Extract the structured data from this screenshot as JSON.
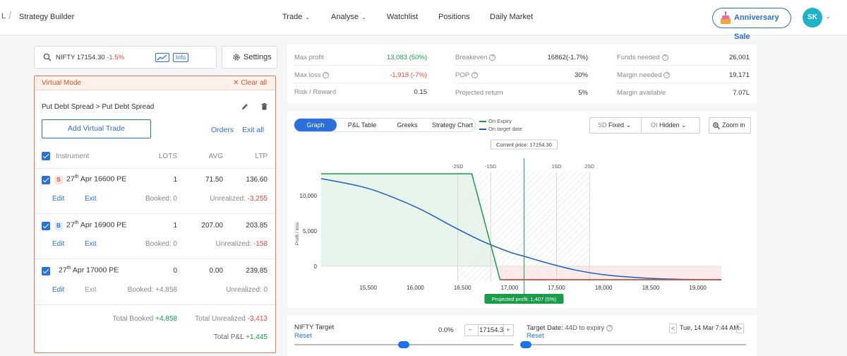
{
  "topbar": {
    "crumb_prefix": "L",
    "page": "Strategy Builder",
    "nav": [
      {
        "label": "Trade",
        "caret": "⌄"
      },
      {
        "label": "Analyse",
        "caret": "⌄"
      },
      {
        "label": "Watchlist"
      },
      {
        "label": "Positions"
      },
      {
        "label": "Daily Market"
      }
    ],
    "anniversary": "Anniversary Sale",
    "avatar": "SK",
    "brand_color": "#2a6fdb",
    "avatar_color": "#1fb3c7"
  },
  "search": {
    "symbol": "NIFTY 17154.30",
    "change": "-1.5%",
    "info": "Info"
  },
  "settings": {
    "label": "Settings"
  },
  "virtual": {
    "mode_label": "Virtual Mode",
    "clear_all": "Clear all",
    "strategy_name": "Put Debt Spread > Put Debt Spread",
    "add_button": "Add Virtual Trade",
    "orders": "Orders",
    "exit_all": "Exit all",
    "headers": {
      "instrument": "Instrument",
      "lots": "LOTS",
      "avg": "AVG",
      "ltp": "LTP"
    },
    "rows": [
      {
        "side": "S",
        "day": "27",
        "sup": "th",
        "rest": " Apr 16600 PE",
        "lots": "1",
        "avg": "71.50",
        "ltp": "136.60",
        "edit": "Edit",
        "exit": "Exit",
        "booked": "Booked: 0",
        "unreal_label": "Unrealized: ",
        "unreal": "-3,255"
      },
      {
        "side": "B",
        "day": "27",
        "sup": "th",
        "rest": " Apr 16900 PE",
        "lots": "1",
        "avg": "207.00",
        "ltp": "203.85",
        "edit": "Edit",
        "exit": "Exit",
        "booked": "Booked: 0",
        "unreal_label": "Unrealized: ",
        "unreal": "-158"
      },
      {
        "side": "",
        "day": "27",
        "sup": "th",
        "rest": " Apr 17000 PE",
        "lots": "0",
        "avg": "0.00",
        "ltp": "239.85",
        "edit": "Edit",
        "exit": "Exit",
        "booked": "Booked: +4,858",
        "unreal_label": "Unrealized: ",
        "unreal": "0"
      }
    ],
    "total_booked_label": "Total Booked ",
    "total_booked": "+4,858",
    "total_unreal_label": "Total Unrealized ",
    "total_unreal": "-3,413",
    "total_pnl_label": "Total P&L ",
    "total_pnl": "+1,445"
  },
  "metrics": {
    "max_profit": {
      "label": "Max profit",
      "value": "13,083 (50%)"
    },
    "max_loss": {
      "label": "Max loss",
      "value": "-1,918 (-7%)"
    },
    "risk_reward": {
      "label": "Risk / Reward",
      "value": "0.15"
    },
    "breakeven": {
      "label": "Breakeven",
      "value": "16862(-1.7%)"
    },
    "pop": {
      "label": "POP",
      "value": "30%"
    },
    "projected_return": {
      "label": "Projected return",
      "value": "5%"
    },
    "funds_needed": {
      "label": "Funds needed",
      "value": "26,001"
    },
    "margin_needed": {
      "label": "Margin needed",
      "value": "19,171"
    },
    "margin_available": {
      "label": "Margin available",
      "value": "7.07L"
    }
  },
  "graph": {
    "tabs": [
      "Graph",
      "P&L Table",
      "Greeks",
      "Strategy Chart"
    ],
    "legend_expiry": "On Expiry",
    "legend_target": "On target date",
    "sd_label": "SD",
    "sd_value": "Fixed",
    "oi_label": "OI",
    "oi_value": "Hidden",
    "zoom": "Zoom in",
    "current_price": "Current price: 17154.30",
    "projected_profit": "Projected profit: 1,407 (5%)"
  },
  "chart_data": {
    "type": "line",
    "xlabel": "",
    "ylabel": "Profit / loss",
    "xlim": [
      15000,
      19250
    ],
    "ylim": [
      -1918,
      13083
    ],
    "x_ticks": [
      15500,
      16000,
      16500,
      17000,
      17500,
      18000,
      18500,
      19000
    ],
    "x_tick_labels": [
      "15,500",
      "16,000",
      "16,500",
      "17,000",
      "17,500",
      "18,000",
      "18,500",
      "19,000"
    ],
    "y_ticks": [
      0,
      5000,
      10000
    ],
    "y_tick_labels": [
      "0",
      "5,000",
      "10,000"
    ],
    "sd_lines": [
      {
        "label": "-2SD",
        "x": 16450
      },
      {
        "label": "-1SD",
        "x": 16800
      },
      {
        "label": "1SD",
        "x": 17500
      },
      {
        "label": "2SD",
        "x": 17850
      }
    ],
    "current_price": 17154.3,
    "series": [
      {
        "name": "On Expiry",
        "color": "#1a9c4a",
        "x": [
          15000,
          16600,
          16900,
          19250
        ],
        "y": [
          13083,
          13083,
          -1918,
          -1918
        ]
      },
      {
        "name": "On target date",
        "color": "#1a5dc8",
        "x": [
          15000,
          15500,
          16000,
          16400,
          16700,
          17000,
          17154,
          17400,
          17700,
          18000,
          18400,
          18800,
          19250
        ],
        "y": [
          12400,
          11000,
          8400,
          5600,
          3600,
          2000,
          1407,
          450,
          -550,
          -1200,
          -1650,
          -1850,
          -1918
        ]
      }
    ]
  },
  "target": {
    "nifty_label": "NIFTY Target",
    "reset": "Reset",
    "pct": "0.0%",
    "value": "17154.3",
    "minus": "−",
    "plus": "+",
    "date_label": "Target Date:",
    "date_expiry": "44D to expiry",
    "date_reset": "Reset",
    "date_value": "Tue, 14 Mar 7:44 AM",
    "prev": "<",
    "next": ">"
  }
}
